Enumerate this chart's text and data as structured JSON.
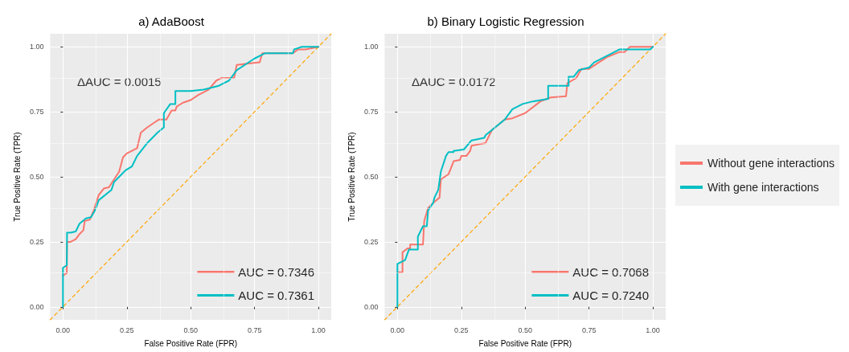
{
  "chart_data": [
    {
      "type": "line",
      "title": "a) AdaBoost",
      "xlabel": "False Positive Rate (FPR)",
      "ylabel": "True Positive Rate (TPR)",
      "annotations": [
        "ΔAUC = 0.0015"
      ],
      "xlim": [
        -0.05,
        1.05
      ],
      "ylim": [
        -0.05,
        1.05
      ],
      "xticks": [
        {
          "value": 0,
          "label": "0.00"
        },
        {
          "value": 0.25,
          "label": "0.25"
        },
        {
          "value": 0.5,
          "label": "0.50"
        },
        {
          "value": 0.75,
          "label": "0.75"
        },
        {
          "value": 1,
          "label": "1.00"
        }
      ],
      "yticks": [
        {
          "value": 0,
          "label": "0.00"
        },
        {
          "value": 0.25,
          "label": "0.25"
        },
        {
          "value": 0.5,
          "label": "0.50"
        },
        {
          "value": 0.75,
          "label": "0.75"
        },
        {
          "value": 1,
          "label": "1.00"
        }
      ],
      "grid": true,
      "legend": "bottom right",
      "marker": "none",
      "series": [
        {
          "name": "AUC = 0.7346",
          "color": "#f8766d",
          "x": [
            0,
            0.015,
            0.016,
            0.03,
            0.05,
            0.065,
            0.08,
            0.085,
            0.105,
            0.12,
            0.14,
            0.16,
            0.18,
            0.2,
            0.22,
            0.235,
            0.25,
            0.27,
            0.29,
            0.305,
            0.33,
            0.36,
            0.375,
            0.405,
            0.425,
            0.44,
            0.445,
            0.47,
            0.5,
            0.53,
            0.57,
            0.6,
            0.62,
            0.67,
            0.68,
            0.72,
            0.77,
            0.78,
            0.9,
            0.92,
            0.95,
            1
          ],
          "values": [
            0.12,
            0.13,
            0.25,
            0.25,
            0.26,
            0.28,
            0.295,
            0.33,
            0.335,
            0.37,
            0.43,
            0.455,
            0.46,
            0.49,
            0.52,
            0.575,
            0.59,
            0.6,
            0.61,
            0.67,
            0.69,
            0.71,
            0.72,
            0.72,
            0.755,
            0.755,
            0.77,
            0.785,
            0.795,
            0.815,
            0.835,
            0.87,
            0.88,
            0.88,
            0.93,
            0.935,
            0.94,
            0.975,
            0.975,
            0.99,
            0.99,
            1
          ]
        },
        {
          "name": "AUC = 0.7361",
          "color": "#00bfc4",
          "x": [
            0,
            0,
            0.015,
            0.016,
            0.03,
            0.05,
            0.065,
            0.09,
            0.11,
            0.125,
            0.14,
            0.19,
            0.2,
            0.23,
            0.245,
            0.27,
            0.29,
            0.33,
            0.37,
            0.395,
            0.395,
            0.42,
            0.44,
            0.44,
            0.5,
            0.55,
            0.61,
            0.65,
            0.68,
            0.75,
            0.79,
            0.9,
            0.905,
            0.935,
            1
          ],
          "values": [
            0,
            0.15,
            0.16,
            0.285,
            0.285,
            0.29,
            0.32,
            0.34,
            0.345,
            0.37,
            0.41,
            0.45,
            0.48,
            0.51,
            0.525,
            0.54,
            0.58,
            0.63,
            0.67,
            0.69,
            0.745,
            0.78,
            0.78,
            0.83,
            0.83,
            0.835,
            0.85,
            0.87,
            0.91,
            0.955,
            0.975,
            0.975,
            0.99,
            1,
            1
          ]
        },
        {
          "type": "line",
          "color": "#ffa500",
          "line_style": "dashed",
          "x": [
            -0.05,
            1.05
          ],
          "values": [
            -0.05,
            1.05
          ]
        }
      ]
    },
    {
      "type": "line",
      "title": "b) Binary Logistic Regression",
      "xlabel": "False Positive Rate (FPR)",
      "ylabel": "True Positive Rate (TPR)",
      "annotations": [
        "ΔAUC = 0.0172"
      ],
      "xlim": [
        -0.05,
        1.05
      ],
      "ylim": [
        -0.05,
        1.05
      ],
      "xticks": [
        {
          "value": 0,
          "label": "0.00"
        },
        {
          "value": 0.25,
          "label": "0.25"
        },
        {
          "value": 0.5,
          "label": "0.50"
        },
        {
          "value": 0.75,
          "label": "0.75"
        },
        {
          "value": 1,
          "label": "1.00"
        }
      ],
      "yticks": [
        {
          "value": 0,
          "label": "0.00"
        },
        {
          "value": 0.25,
          "label": "0.25"
        },
        {
          "value": 0.5,
          "label": "0.50"
        },
        {
          "value": 0.75,
          "label": "0.75"
        },
        {
          "value": 1,
          "label": "1.00"
        }
      ],
      "grid": true,
      "legend": "bottom right",
      "marker": "none",
      "series": [
        {
          "name": "AUC = 0.7068",
          "color": "#f8766d",
          "x": [
            0,
            0.02,
            0.02,
            0.04,
            0.05,
            0.05,
            0.1,
            0.105,
            0.12,
            0.14,
            0.165,
            0.17,
            0.2,
            0.22,
            0.245,
            0.25,
            0.27,
            0.285,
            0.29,
            0.345,
            0.37,
            0.42,
            0.45,
            0.5,
            0.56,
            0.6,
            0.66,
            0.665,
            0.7,
            0.72,
            0.75,
            0.82,
            0.87,
            0.89,
            0.91,
            1
          ],
          "values": [
            0.133,
            0.133,
            0.21,
            0.225,
            0.225,
            0.24,
            0.24,
            0.33,
            0.38,
            0.4,
            0.42,
            0.49,
            0.51,
            0.56,
            0.565,
            0.58,
            0.58,
            0.6,
            0.62,
            0.63,
            0.68,
            0.72,
            0.725,
            0.745,
            0.79,
            0.805,
            0.81,
            0.86,
            0.88,
            0.915,
            0.915,
            0.96,
            0.98,
            0.98,
            1,
            1
          ]
        },
        {
          "name": "AUC = 0.7240",
          "color": "#00bfc4",
          "x": [
            0,
            0,
            0.03,
            0.045,
            0.08,
            0.08,
            0.1,
            0.115,
            0.12,
            0.14,
            0.145,
            0.16,
            0.17,
            0.19,
            0.2,
            0.22,
            0.22,
            0.26,
            0.29,
            0.34,
            0.345,
            0.42,
            0.45,
            0.49,
            0.53,
            0.59,
            0.59,
            0.67,
            0.67,
            0.69,
            0.71,
            0.75,
            0.77,
            0.87,
            0.99,
            1
          ],
          "values": [
            0,
            0.165,
            0.18,
            0.22,
            0.22,
            0.27,
            0.31,
            0.31,
            0.37,
            0.4,
            0.42,
            0.45,
            0.52,
            0.58,
            0.595,
            0.595,
            0.6,
            0.605,
            0.64,
            0.65,
            0.66,
            0.72,
            0.76,
            0.78,
            0.79,
            0.8,
            0.85,
            0.85,
            0.885,
            0.885,
            0.91,
            0.92,
            0.94,
            0.99,
            0.99,
            1
          ]
        },
        {
          "type": "line",
          "color": "#ffa500",
          "line_style": "dashed",
          "x": [
            -0.05,
            1.05
          ],
          "values": [
            -0.05,
            1.05
          ]
        }
      ]
    },
    {
      "type": "other",
      "categories": [
        "Without gene interactions",
        "With gene interactions"
      ],
      "colors": [
        "#f8766d",
        "#00bfc4"
      ]
    }
  ]
}
